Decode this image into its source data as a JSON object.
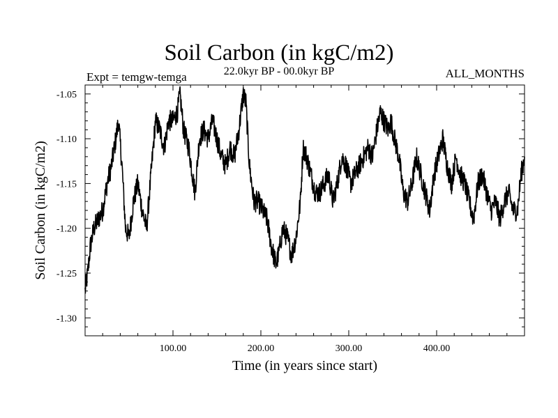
{
  "chart_data": {
    "type": "line",
    "title": "Soil Carbon (in kgC/m2)",
    "subtitle": "22.0kyr BP - 00.0kyr BP",
    "left_annotation": "Expt = temgw-temga",
    "right_annotation": "ALL_MONTHS",
    "xlabel": "Time (in years since start)",
    "ylabel": "Soil Carbon (in kgC/m2)",
    "xlim": [
      0,
      500
    ],
    "ylim": [
      -1.32,
      -1.04
    ],
    "xticks": [
      100,
      200,
      300,
      400
    ],
    "xtick_labels": [
      "100.00",
      "200.00",
      "300.00",
      "400.00"
    ],
    "yticks": [
      -1.05,
      -1.1,
      -1.15,
      -1.2,
      -1.25,
      -1.3
    ],
    "ytick_labels": [
      "-1.05",
      "-1.10",
      "-1.15",
      "-1.20",
      "-1.25",
      "-1.30"
    ],
    "noise_amplitude": 0.012,
    "series": [
      {
        "name": "Soil Carbon",
        "color": "#000000",
        "x": [
          0,
          3,
          6,
          10,
          15,
          20,
          25,
          30,
          35,
          38,
          42,
          46,
          50,
          55,
          60,
          65,
          70,
          75,
          80,
          85,
          90,
          95,
          100,
          105,
          108,
          112,
          118,
          125,
          130,
          135,
          140,
          145,
          150,
          155,
          160,
          165,
          170,
          175,
          180,
          183,
          187,
          192,
          197,
          202,
          207,
          212,
          217,
          220,
          225,
          230,
          235,
          240,
          245,
          248,
          252,
          257,
          262,
          267,
          272,
          277,
          282,
          287,
          292,
          297,
          302,
          307,
          312,
          317,
          322,
          327,
          332,
          336,
          340,
          345,
          348,
          352,
          357,
          362,
          367,
          372,
          377,
          382,
          387,
          392,
          397,
          402,
          407,
          412,
          417,
          422,
          427,
          432,
          437,
          442,
          447,
          452,
          457,
          462,
          467,
          472,
          477,
          482,
          487,
          492,
          496,
          500
        ],
        "y": [
          -1.27,
          -1.25,
          -1.22,
          -1.2,
          -1.19,
          -1.18,
          -1.15,
          -1.13,
          -1.1,
          -1.08,
          -1.13,
          -1.2,
          -1.21,
          -1.17,
          -1.15,
          -1.18,
          -1.2,
          -1.14,
          -1.08,
          -1.09,
          -1.11,
          -1.08,
          -1.08,
          -1.07,
          -1.05,
          -1.09,
          -1.11,
          -1.16,
          -1.1,
          -1.09,
          -1.1,
          -1.08,
          -1.1,
          -1.12,
          -1.13,
          -1.11,
          -1.12,
          -1.09,
          -1.05,
          -1.06,
          -1.13,
          -1.17,
          -1.17,
          -1.18,
          -1.19,
          -1.22,
          -1.24,
          -1.23,
          -1.2,
          -1.21,
          -1.23,
          -1.21,
          -1.17,
          -1.11,
          -1.12,
          -1.14,
          -1.16,
          -1.16,
          -1.15,
          -1.14,
          -1.17,
          -1.15,
          -1.12,
          -1.13,
          -1.15,
          -1.14,
          -1.13,
          -1.12,
          -1.11,
          -1.12,
          -1.09,
          -1.07,
          -1.08,
          -1.09,
          -1.08,
          -1.1,
          -1.12,
          -1.16,
          -1.17,
          -1.15,
          -1.12,
          -1.14,
          -1.16,
          -1.18,
          -1.14,
          -1.12,
          -1.1,
          -1.13,
          -1.15,
          -1.12,
          -1.14,
          -1.15,
          -1.17,
          -1.19,
          -1.15,
          -1.14,
          -1.16,
          -1.18,
          -1.17,
          -1.19,
          -1.17,
          -1.16,
          -1.18,
          -1.18,
          -1.14,
          -1.12
        ]
      }
    ]
  }
}
